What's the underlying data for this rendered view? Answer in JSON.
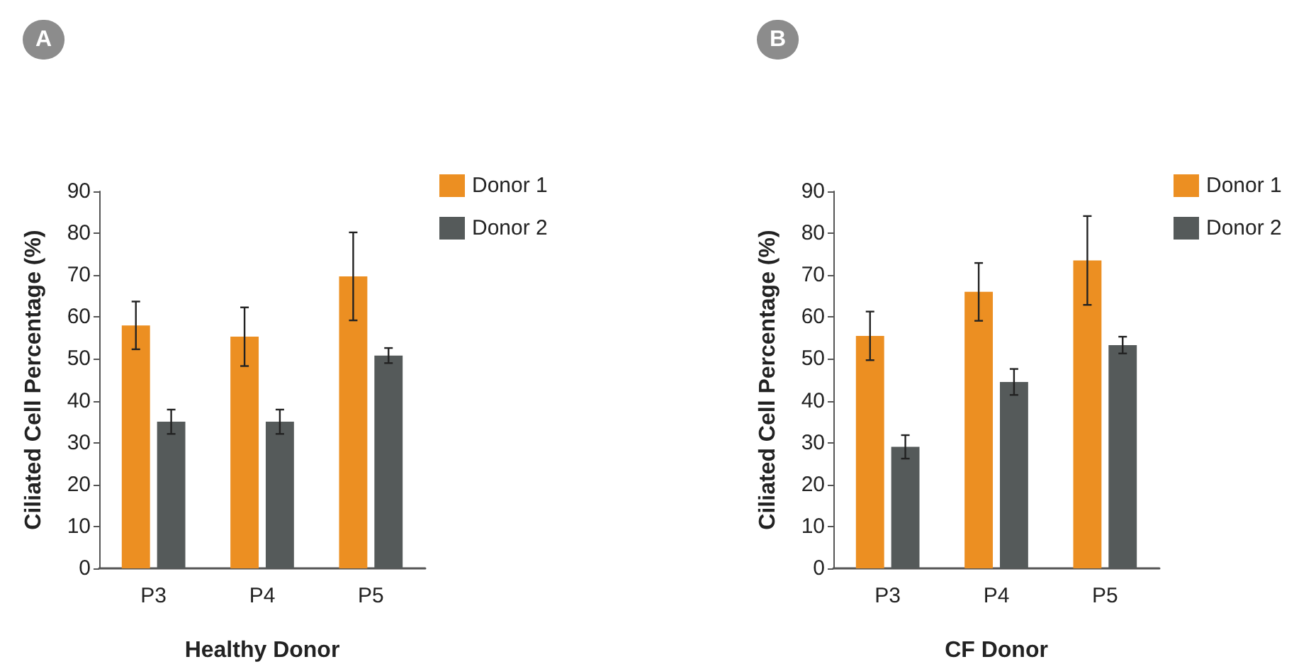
{
  "chart_data": [
    {
      "type": "bar",
      "title": "A",
      "xlabel": "Healthy Donor",
      "ylabel": "Ciliated Cell Percentage (%)",
      "categories": [
        "P3",
        "P4",
        "P5"
      ],
      "ylim": [
        0,
        90
      ],
      "yticks": [
        0,
        10,
        20,
        30,
        40,
        50,
        60,
        70,
        80,
        90
      ],
      "legend": "top right",
      "series": [
        {
          "name": "Donor 1",
          "color": "#ec8f22",
          "values": [
            58,
            55.3,
            69.7
          ],
          "errors": [
            5.7,
            7,
            10.5
          ]
        },
        {
          "name": "Donor 2",
          "color": "#555a5a",
          "values": [
            35,
            35,
            50.8
          ],
          "errors": [
            2.9,
            2.9,
            1.8
          ]
        }
      ]
    },
    {
      "type": "bar",
      "title": "B",
      "xlabel": "CF Donor",
      "ylabel": "Ciliated Cell Percentage (%)",
      "categories": [
        "P3",
        "P4",
        "P5"
      ],
      "ylim": [
        0,
        90
      ],
      "yticks": [
        0,
        10,
        20,
        30,
        40,
        50,
        60,
        70,
        80,
        90
      ],
      "legend": "top right",
      "series": [
        {
          "name": "Donor 1",
          "color": "#ec8f22",
          "values": [
            55.5,
            66,
            73.5
          ],
          "errors": [
            5.8,
            6.9,
            10.6
          ]
        },
        {
          "name": "Donor 2",
          "color": "#555a5a",
          "values": [
            29,
            44.5,
            53.3
          ],
          "errors": [
            2.8,
            3.1,
            2
          ]
        }
      ]
    }
  ]
}
